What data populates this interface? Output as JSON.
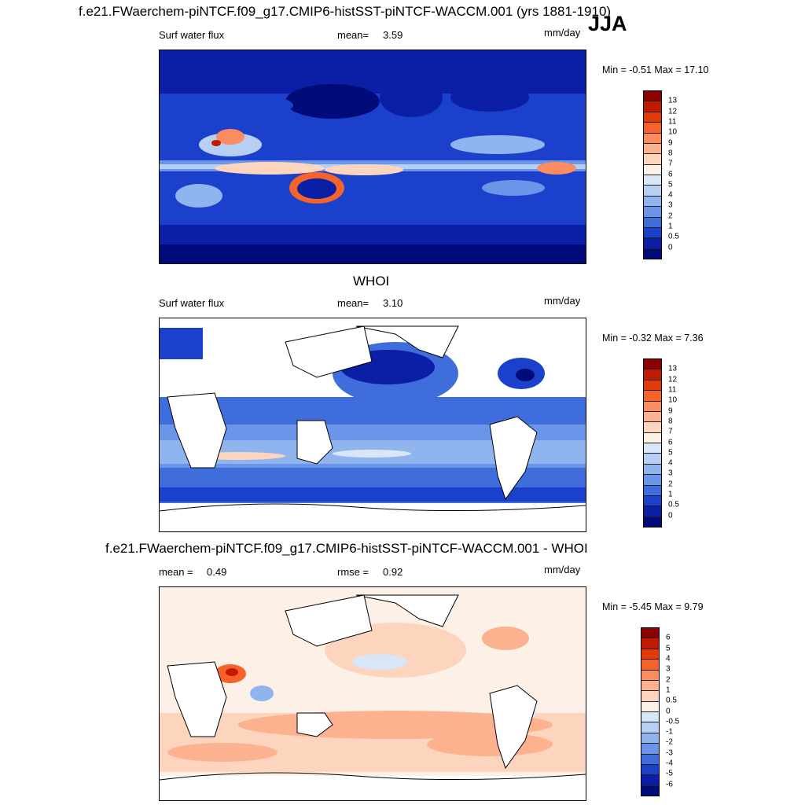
{
  "header": {
    "case_title": "f.e21.FWaerchem-piNTCF.f09_g17.CMIP6-histSST-piNTCF-WACCM.001 (yrs 1881-1910)",
    "season": "JJA"
  },
  "panels": [
    {
      "id": "model",
      "title": "",
      "left_label": "Surf water flux",
      "stat_label": "mean=",
      "stat_value": "3.59",
      "stat2_label": "",
      "stat2_value": "",
      "units": "mm/day",
      "minmax_text": "Min =  -0.51 Max =  17.10",
      "colorbar": {
        "labels": [
          "13",
          "12",
          "11",
          "10",
          "9",
          "8",
          "7",
          "6",
          "5",
          "4",
          "3",
          "2",
          "1",
          "0.5",
          "0"
        ],
        "colors": [
          "#8c0000",
          "#c21a00",
          "#e33a0c",
          "#f5622a",
          "#fb8c5f",
          "#fdb28f",
          "#fdd4bd",
          "#fdf0e6",
          "#d8e6f8",
          "#b6cff3",
          "#90b4ee",
          "#6a95e8",
          "#3f6ddc",
          "#1b41cc",
          "#0a1fa6",
          "#000b7a"
        ]
      }
    },
    {
      "id": "obs",
      "title": "WHOI",
      "left_label": "Surf water flux",
      "stat_label": "mean=",
      "stat_value": "3.10",
      "stat2_label": "",
      "stat2_value": "",
      "units": "mm/day",
      "minmax_text": "Min =  -0.32 Max =   7.36",
      "colorbar": {
        "labels": [
          "13",
          "12",
          "11",
          "10",
          "9",
          "8",
          "7",
          "6",
          "5",
          "4",
          "3",
          "2",
          "1",
          "0.5",
          "0"
        ],
        "colors": [
          "#8c0000",
          "#c21a00",
          "#e33a0c",
          "#f5622a",
          "#fb8c5f",
          "#fdb28f",
          "#fdd4bd",
          "#fdf0e6",
          "#d8e6f8",
          "#b6cff3",
          "#90b4ee",
          "#6a95e8",
          "#3f6ddc",
          "#1b41cc",
          "#0a1fa6",
          "#000b7a"
        ]
      }
    },
    {
      "id": "diff",
      "title": "f.e21.FWaerchem-piNTCF.f09_g17.CMIP6-histSST-piNTCF-WACCM.001 - WHOI",
      "left_label": "",
      "stat_label": "mean =",
      "stat_value": "0.49",
      "stat2_label": "rmse =",
      "stat2_value": "0.92",
      "units": "mm/day",
      "minmax_text": "Min =  -5.45 Max =   9.79",
      "colorbar": {
        "labels": [
          "6",
          "5",
          "4",
          "3",
          "2",
          "1",
          "0.5",
          "0",
          "-0.5",
          "-1",
          "-2",
          "-3",
          "-4",
          "-5",
          "-6"
        ],
        "colors": [
          "#8c0000",
          "#c21a00",
          "#e33a0c",
          "#f5622a",
          "#fb8c5f",
          "#fdb28f",
          "#fdd4bd",
          "#fdf0e6",
          "#d8e6f8",
          "#b6cff3",
          "#90b4ee",
          "#6a95e8",
          "#3f6ddc",
          "#1b41cc",
          "#0a1fa6",
          "#000b7a"
        ]
      }
    }
  ],
  "chart_data": [
    {
      "type": "heatmap",
      "title": "f.e21.FWaerchem-piNTCF.f09_g17.CMIP6-histSST-piNTCF-WACCM.001 (yrs 1881-1910)",
      "variable": "Surf water flux",
      "units": "mm/day",
      "mean": 3.59,
      "min": -0.51,
      "max": 17.1,
      "contour_levels": [
        0,
        0.5,
        1,
        2,
        3,
        4,
        5,
        6,
        7,
        8,
        9,
        10,
        11,
        12,
        13
      ]
    },
    {
      "type": "heatmap",
      "title": "WHOI",
      "variable": "Surf water flux",
      "units": "mm/day",
      "mean": 3.1,
      "min": -0.32,
      "max": 7.36,
      "contour_levels": [
        0,
        0.5,
        1,
        2,
        3,
        4,
        5,
        6,
        7,
        8,
        9,
        10,
        11,
        12,
        13
      ]
    },
    {
      "type": "heatmap",
      "title": "f.e21.FWaerchem-piNTCF.f09_g17.CMIP6-histSST-piNTCF-WACCM.001 - WHOI",
      "units": "mm/day",
      "mean": 0.49,
      "rmse": 0.92,
      "min": -5.45,
      "max": 9.79,
      "contour_levels": [
        -6,
        -5,
        -4,
        -3,
        -2,
        -1,
        -0.5,
        0,
        0.5,
        1,
        2,
        3,
        4,
        5,
        6
      ]
    }
  ]
}
